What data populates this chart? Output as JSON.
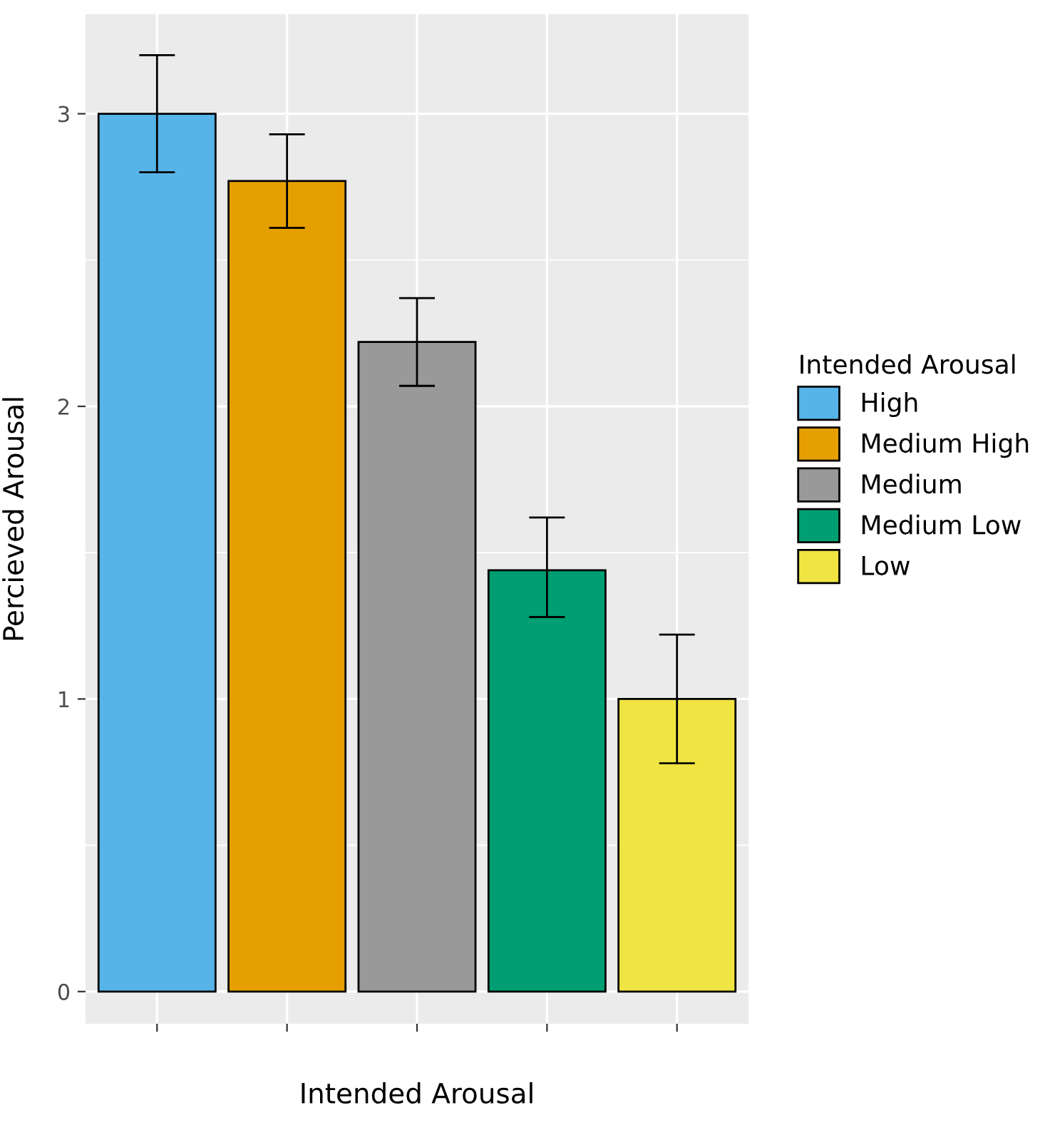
{
  "chart_data": {
    "type": "bar",
    "xlabel": "Intended Arousal",
    "ylabel": "Percieved Arousal",
    "legend_title": "Intended Arousal",
    "categories": [
      null,
      null,
      null,
      null,
      null
    ],
    "series": [
      {
        "name": "High",
        "color": "#56b4e9",
        "values": [
          3.0,
          null,
          null,
          null,
          null
        ],
        "errors": [
          [
            2.8,
            3.2
          ],
          null,
          null,
          null,
          null
        ]
      },
      {
        "name": "Medium High",
        "color": "#e69f00",
        "values": [
          null,
          2.77,
          null,
          null,
          null
        ],
        "errors": [
          null,
          [
            2.61,
            2.93
          ],
          null,
          null,
          null
        ]
      },
      {
        "name": "Medium",
        "color": "#999999",
        "values": [
          null,
          null,
          2.22,
          null,
          null
        ],
        "errors": [
          null,
          null,
          [
            2.07,
            2.37
          ],
          null,
          null
        ]
      },
      {
        "name": "Medium Low",
        "color": "#009e73",
        "values": [
          null,
          null,
          null,
          1.44,
          null
        ],
        "errors": [
          null,
          null,
          null,
          [
            1.28,
            1.62
          ],
          null
        ]
      },
      {
        "name": "Low",
        "color": "#f0e442",
        "values": [
          null,
          null,
          null,
          null,
          1.0
        ],
        "errors": [
          null,
          null,
          null,
          null,
          [
            0.78,
            1.22
          ]
        ]
      }
    ],
    "ylim": [
      -0.11,
      3.34
    ],
    "yticks": [
      0,
      1,
      2,
      3
    ],
    "grid": true,
    "legend": "right",
    "tick_labels": "y"
  }
}
